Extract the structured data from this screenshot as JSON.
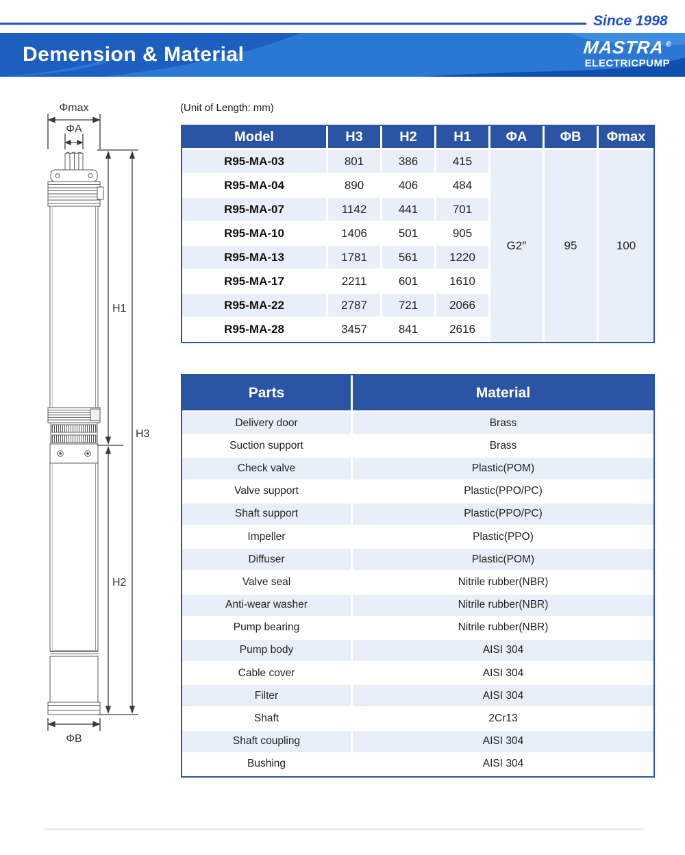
{
  "header": {
    "since": "Since 1998",
    "title": "Demension & Material",
    "brand_name": "MASTRA",
    "brand_reg": "®",
    "brand_sub": "ELECTRICPUMP"
  },
  "unit_note": "(Unit of Length: mm)",
  "diagram_labels": {
    "phimax": "Φmax",
    "phia": "ΦA",
    "h1": "H1",
    "h3": "H3",
    "h2": "H2",
    "phib": "ΦB"
  },
  "dimension_table": {
    "headers": [
      "Model",
      "H3",
      "H2",
      "H1",
      "ΦA",
      "ΦB",
      "Φmax"
    ],
    "rows": [
      {
        "model": "R95-MA-03",
        "h3": "801",
        "h2": "386",
        "h1": "415"
      },
      {
        "model": "R95-MA-04",
        "h3": "890",
        "h2": "406",
        "h1": "484"
      },
      {
        "model": "R95-MA-07",
        "h3": "1142",
        "h2": "441",
        "h1": "701"
      },
      {
        "model": "R95-MA-10",
        "h3": "1406",
        "h2": "501",
        "h1": "905"
      },
      {
        "model": "R95-MA-13",
        "h3": "1781",
        "h2": "561",
        "h1": "1220"
      },
      {
        "model": "R95-MA-17",
        "h3": "2211",
        "h2": "601",
        "h1": "1610"
      },
      {
        "model": "R95-MA-22",
        "h3": "2787",
        "h2": "721",
        "h1": "2066"
      },
      {
        "model": "R95-MA-28",
        "h3": "3457",
        "h2": "841",
        "h1": "2616"
      }
    ],
    "shared": {
      "phia": "G2″",
      "phib": "95",
      "phimax": "100"
    }
  },
  "materials_table": {
    "headers": [
      "Parts",
      "Material"
    ],
    "rows": [
      [
        "Delivery door",
        "Brass"
      ],
      [
        "Suction support",
        "Brass"
      ],
      [
        "Check valve",
        "Plastic(POM)"
      ],
      [
        "Valve support",
        "Plastic(PPO/PC)"
      ],
      [
        "Shaft support",
        "Plastic(PPO/PC)"
      ],
      [
        "Impeller",
        "Plastic(PPO)"
      ],
      [
        "Diffuser",
        "Plastic(POM)"
      ],
      [
        "Valve seal",
        "Nitrile rubber(NBR)"
      ],
      [
        "Anti-wear washer",
        "Nitrile rubber(NBR)"
      ],
      [
        "Pump bearing",
        "Nitrile rubber(NBR)"
      ],
      [
        "Pump body",
        "AISI 304"
      ],
      [
        "Cable cover",
        "AISI 304"
      ],
      [
        "Filter",
        "AISI 304"
      ],
      [
        "Shaft",
        "2Cr13"
      ],
      [
        "Shaft coupling",
        "AISI 304"
      ],
      [
        "Bushing",
        "AISI 304"
      ]
    ]
  },
  "colors": {
    "table_header_blue": "#2b55a4",
    "row_light_blue": "#e9eff8",
    "banner_blue": "#1d5fc0",
    "banner_wave_light": "#2a78d4",
    "banner_wave_dark": "#0f4fae",
    "since_blue": "#1d4fd6",
    "border_blue": "#2b55a4"
  }
}
